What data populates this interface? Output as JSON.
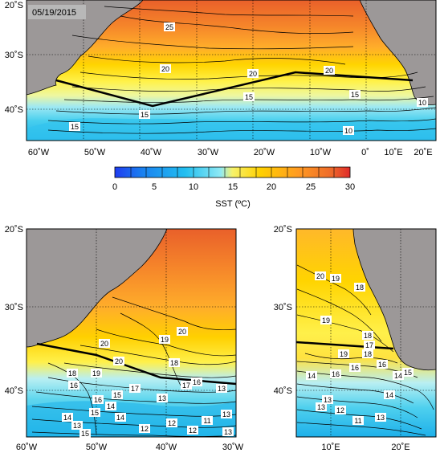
{
  "date_label": "05/19/2015",
  "colorbar": {
    "label": "SST (ºC)",
    "ticks": [
      "0",
      "5",
      "10",
      "15",
      "20",
      "25",
      "30"
    ],
    "range": [
      0,
      30
    ],
    "colors": [
      "#1f3cf0",
      "#1a7ff0",
      "#1fbcf0",
      "#3fd9f0",
      "#7fe8f4",
      "#bdf4f7",
      "#f7f06a",
      "#ffe100",
      "#ffc400",
      "#ffa21a",
      "#ff8a2a",
      "#f36f2a",
      "#e95a2a",
      "#e03030"
    ]
  },
  "panels": {
    "top": {
      "lat_labels": [
        "20˚S",
        "30˚S",
        "40˚S"
      ],
      "lon_labels": [
        "60˚W",
        "50˚W",
        "40˚W",
        "30˚W",
        "20˚W",
        "10˚W",
        "0˚",
        "10˚E",
        "20˚E"
      ],
      "contour_labels": [
        "25",
        "20",
        "20",
        "20",
        "15",
        "15",
        "15",
        "10",
        "15",
        "10"
      ]
    },
    "bottom_left": {
      "lat_labels": [
        "20˚S",
        "30˚S",
        "40˚S"
      ],
      "lon_labels": [
        "60˚W",
        "50˚W",
        "40˚W",
        "30˚W"
      ],
      "contour_labels": [
        "20",
        "19",
        "20",
        "18",
        "19",
        "20",
        "18",
        "17",
        "16",
        "13",
        "16",
        "17",
        "16",
        "15",
        "13",
        "12",
        "11",
        "13",
        "15",
        "14",
        "15",
        "14",
        "14",
        "13",
        "13",
        "12",
        "12"
      ]
    },
    "bottom_right": {
      "lat_labels": [
        "20˚S",
        "30˚S",
        "40˚S"
      ],
      "lon_labels": [
        "10˚E",
        "20˚E"
      ],
      "contour_labels": [
        "20",
        "19",
        "18",
        "19",
        "18",
        "17",
        "19",
        "18",
        "16",
        "16",
        "15",
        "14",
        "16",
        "14",
        "13",
        "12",
        "11",
        "13",
        "13",
        "14"
      ]
    }
  },
  "colors": {
    "land": "#9c9898",
    "transect": "#000000"
  }
}
